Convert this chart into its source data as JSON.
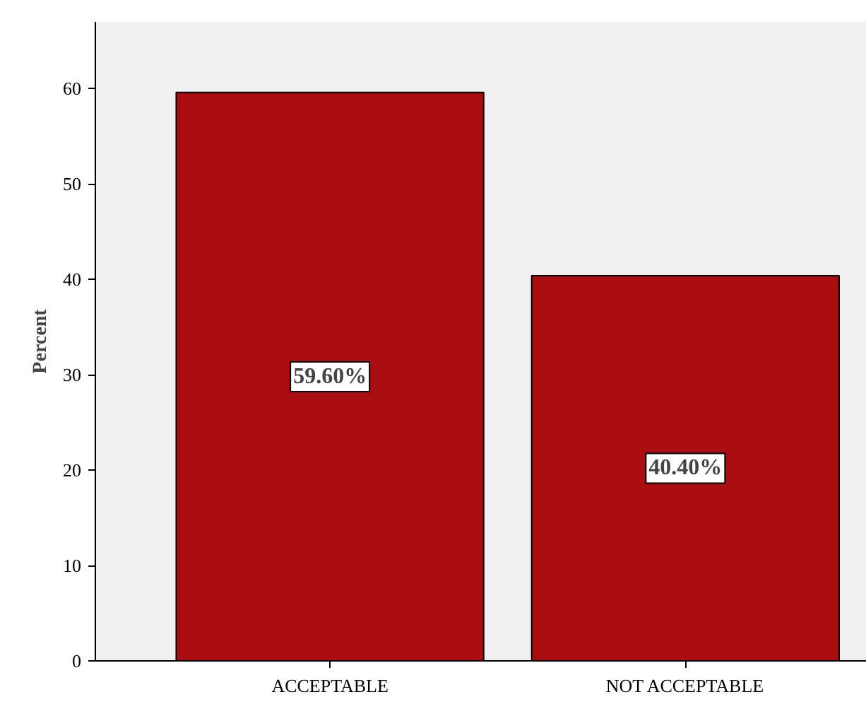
{
  "chart_data": {
    "type": "bar",
    "ylabel": "Percent",
    "categories": [
      "ACCEPTABLE",
      "NOT ACCEPTABLE"
    ],
    "values": [
      59.6,
      40.4
    ],
    "color": "#aa0d10",
    "value_labels": [
      "59.60%",
      "40.40%"
    ],
    "ylim": [
      0,
      67
    ],
    "yticks": [
      0,
      10,
      20,
      30,
      40,
      50,
      60
    ],
    "grid": false
  }
}
